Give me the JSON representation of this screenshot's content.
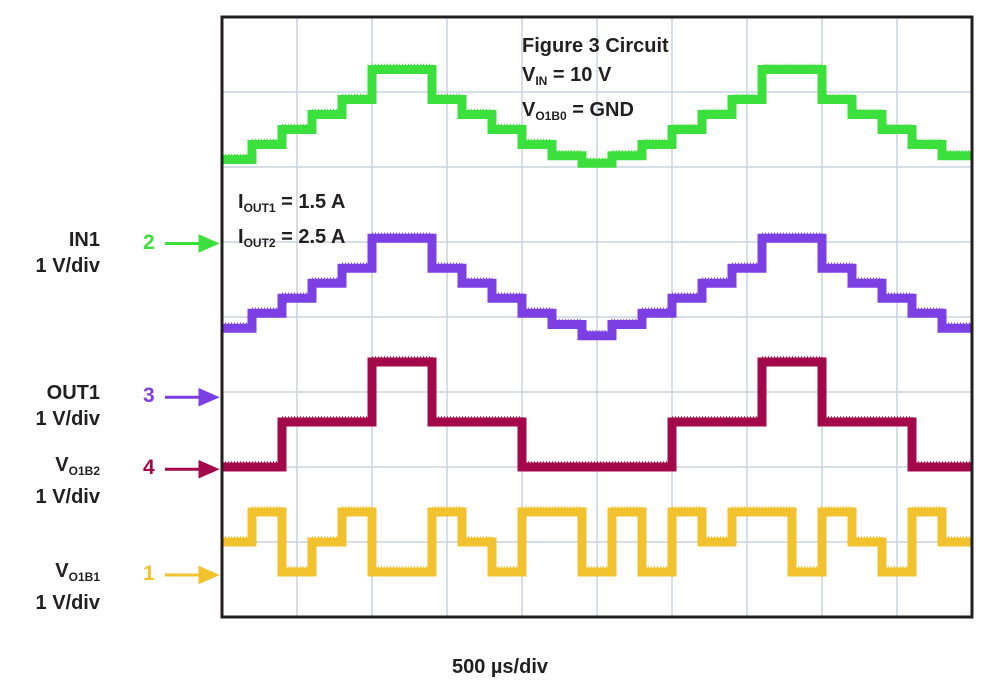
{
  "chart_data": {
    "type": "line",
    "title": "",
    "xlabel": "500 µs/div",
    "ylabel": "",
    "grid": true,
    "x_divisions": 10,
    "y_divisions": 8,
    "annotations": {
      "figure_label": "Figure 3 Circuit",
      "vin_main": "V",
      "vin_sub": "IN",
      "vin_value": " = 10 V",
      "vo_main": "V",
      "vo_sub": "O1B0",
      "vo_value": " = GND",
      "iout1_main": "I",
      "iout1_sub": "OUT1",
      "iout1_value": " = 1.5 A",
      "iout2_main": "I",
      "iout2_sub": "OUT2",
      "iout2_value": " = 2.5 A"
    },
    "series": [
      {
        "channel": "2",
        "name": "IN1",
        "name_main": "IN1",
        "name_sub": "",
        "scale": "1 V/div",
        "color": "#3ce03c",
        "marker_div": 4.98,
        "x": [
          0,
          0.4,
          0.8,
          1.2,
          1.6,
          2.0,
          2.8,
          3.2,
          3.6,
          4.0,
          4.4,
          4.8,
          5.2,
          5.6,
          6.0,
          6.4,
          6.8,
          7.2,
          8.0,
          8.4,
          8.8,
          9.2,
          9.6,
          10.0
        ],
        "y": [
          6.1,
          6.3,
          6.5,
          6.7,
          6.9,
          7.3,
          6.9,
          6.7,
          6.5,
          6.3,
          6.15,
          6.05,
          6.15,
          6.3,
          6.5,
          6.7,
          6.9,
          7.3,
          6.9,
          6.7,
          6.5,
          6.3,
          6.15,
          6.15
        ]
      },
      {
        "channel": "3",
        "name": "OUT1",
        "name_main": "OUT1",
        "name_sub": "",
        "scale": "1 V/div",
        "color": "#7b3fe4",
        "marker_div": 2.93,
        "x": [
          0,
          0.4,
          0.8,
          1.2,
          1.6,
          2.0,
          2.8,
          3.2,
          3.6,
          4.0,
          4.4,
          4.8,
          5.2,
          5.6,
          6.0,
          6.4,
          6.8,
          7.2,
          8.0,
          8.4,
          8.8,
          9.2,
          9.6,
          10.0
        ],
        "y": [
          3.85,
          4.05,
          4.25,
          4.45,
          4.65,
          5.05,
          4.65,
          4.45,
          4.25,
          4.05,
          3.9,
          3.75,
          3.9,
          4.05,
          4.25,
          4.45,
          4.65,
          5.05,
          4.65,
          4.45,
          4.25,
          4.05,
          3.85,
          3.85
        ]
      },
      {
        "channel": "4",
        "name": "VO1B2",
        "name_main": "V",
        "name_sub": "O1B2",
        "scale": "1 V/div",
        "color": "#a3094a",
        "marker_div": 1.97,
        "x": [
          0,
          0.8,
          2.0,
          2.8,
          4.0,
          6.0,
          7.2,
          8.0,
          9.2,
          10.0
        ],
        "y": [
          2.0,
          2.6,
          3.4,
          2.6,
          2.0,
          2.6,
          3.4,
          2.6,
          2.0,
          2.0
        ]
      },
      {
        "channel": "1",
        "name": "VO1B1",
        "name_main": "V",
        "name_sub": "O1B1",
        "scale": "1 V/div",
        "color": "#f2c12e",
        "marker_div": 0.56,
        "x": [
          0,
          0.4,
          0.8,
          1.2,
          1.6,
          2.0,
          2.8,
          3.2,
          3.6,
          4.0,
          4.8,
          5.2,
          5.6,
          6.0,
          6.4,
          6.8,
          7.6,
          8.0,
          8.4,
          8.8,
          9.2,
          9.6,
          10.0
        ],
        "y": [
          1.0,
          1.4,
          0.6,
          1.0,
          1.4,
          0.6,
          1.4,
          1.0,
          0.6,
          1.4,
          0.6,
          1.4,
          0.6,
          1.4,
          1.0,
          1.4,
          0.6,
          1.4,
          1.0,
          0.6,
          1.4,
          1.0,
          1.0
        ]
      }
    ]
  }
}
